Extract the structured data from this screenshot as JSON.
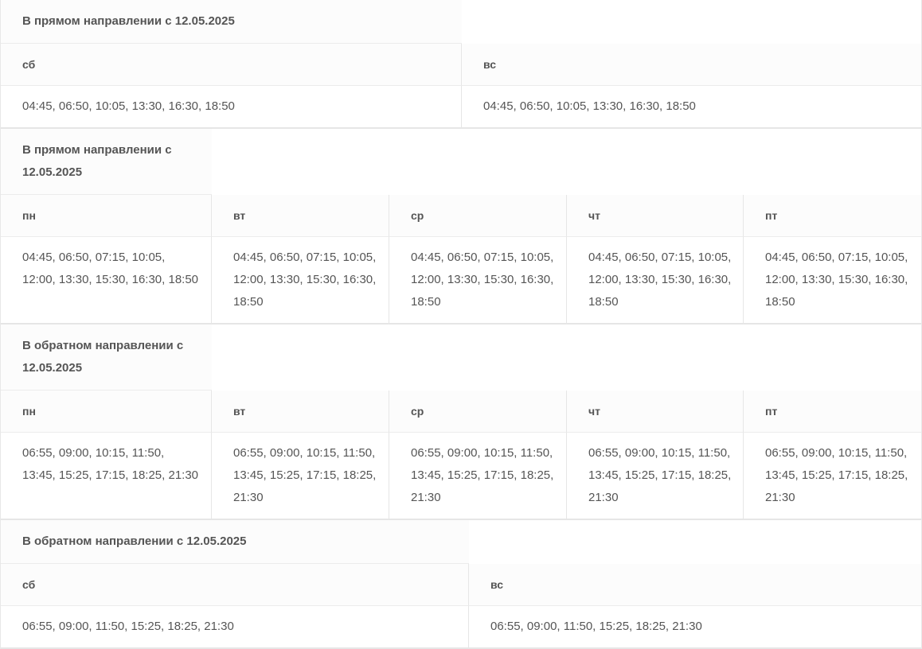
{
  "tables": [
    {
      "caption": "В прямом направлении с 12.05.2025",
      "columns": [
        {
          "day": "сб",
          "times": "04:45, 06:50, 10:05, 13:30, 16:30, 18:50"
        },
        {
          "day": "вс",
          "times": "04:45, 06:50, 10:05, 13:30, 16:30, 18:50"
        }
      ]
    },
    {
      "caption": "В прямом направлении с 12.05.2025",
      "columns": [
        {
          "day": "пн",
          "times": "04:45, 06:50, 07:15, 10:05, 12:00, 13:30, 15:30, 16:30, 18:50"
        },
        {
          "day": "вт",
          "times": "04:45, 06:50, 07:15, 10:05, 12:00, 13:30, 15:30, 16:30, 18:50"
        },
        {
          "day": "ср",
          "times": "04:45, 06:50, 07:15, 10:05, 12:00, 13:30, 15:30, 16:30, 18:50"
        },
        {
          "day": "чт",
          "times": "04:45, 06:50, 07:15, 10:05, 12:00, 13:30, 15:30, 16:30, 18:50"
        },
        {
          "day": "пт",
          "times": "04:45, 06:50, 07:15, 10:05, 12:00, 13:30, 15:30, 16:30, 18:50"
        }
      ]
    },
    {
      "caption": "В обратном направлении с 12.05.2025",
      "columns": [
        {
          "day": "пн",
          "times": "06:55, 09:00, 10:15, 11:50, 13:45, 15:25, 17:15, 18:25, 21:30"
        },
        {
          "day": "вт",
          "times": "06:55, 09:00, 10:15, 11:50, 13:45, 15:25, 17:15, 18:25, 21:30"
        },
        {
          "day": "ср",
          "times": "06:55, 09:00, 10:15, 11:50, 13:45, 15:25, 17:15, 18:25, 21:30"
        },
        {
          "day": "чт",
          "times": "06:55, 09:00, 10:15, 11:50, 13:45, 15:25, 17:15, 18:25, 21:30"
        },
        {
          "day": "пт",
          "times": "06:55, 09:00, 10:15, 11:50, 13:45, 15:25, 17:15, 18:25, 21:30"
        }
      ]
    },
    {
      "caption": "В обратном направлении с 12.05.2025",
      "columns": [
        {
          "day": "сб",
          "times": "06:55, 09:00, 11:50, 15:25, 18:25, 21:30"
        },
        {
          "day": "вс",
          "times": "06:55, 09:00, 11:50, 15:25, 18:25, 21:30"
        }
      ]
    }
  ]
}
